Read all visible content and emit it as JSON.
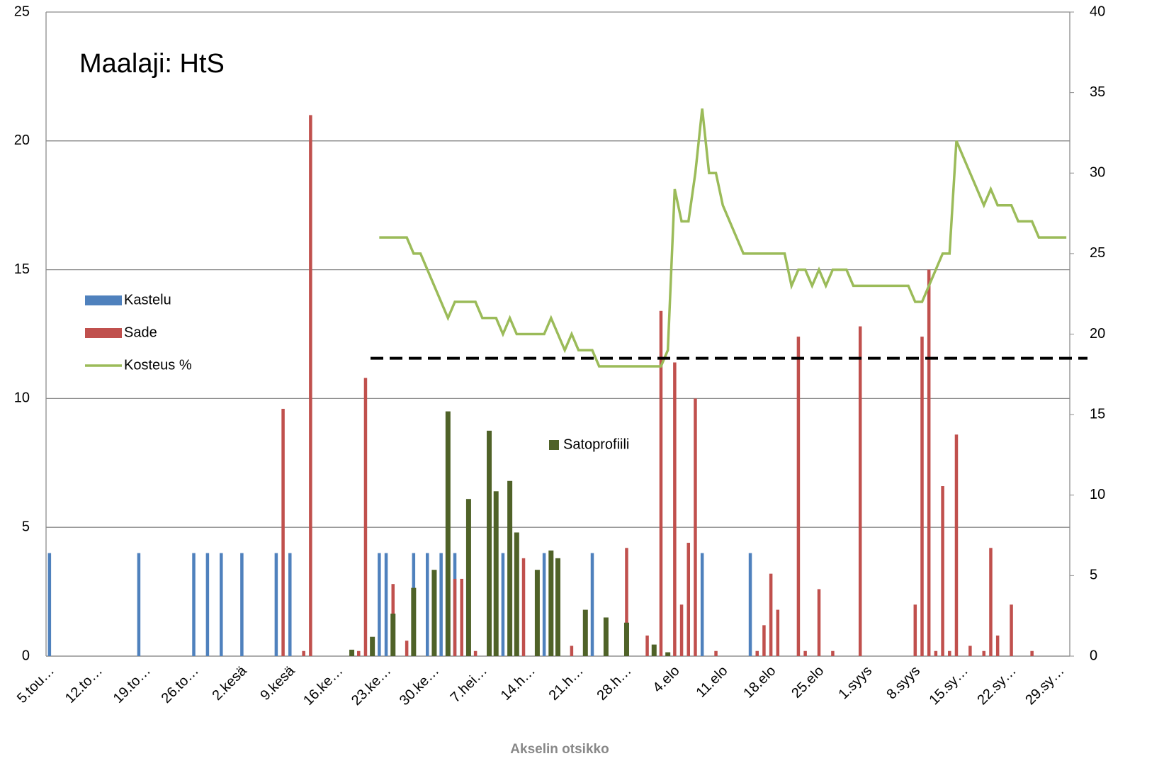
{
  "chart_data": {
    "type": "bar_line",
    "title": "Maalaji: HtS",
    "x_label": "Akselin otsikko",
    "categories": [
      "5.tou…",
      null,
      null,
      null,
      null,
      null,
      null,
      "12.to…",
      null,
      null,
      null,
      null,
      null,
      null,
      "19.to…",
      null,
      null,
      null,
      null,
      null,
      null,
      "26.to…",
      null,
      null,
      null,
      null,
      null,
      null,
      "2.kesä",
      null,
      null,
      null,
      null,
      null,
      null,
      "9.kesä",
      null,
      null,
      null,
      null,
      null,
      null,
      "16.ke…",
      null,
      null,
      null,
      null,
      null,
      null,
      "23.ke…",
      null,
      null,
      null,
      null,
      null,
      null,
      "30.ke…",
      null,
      null,
      null,
      null,
      null,
      null,
      "7.hei…",
      null,
      null,
      null,
      null,
      null,
      null,
      "14.h…",
      null,
      null,
      null,
      null,
      null,
      null,
      "21.h…",
      null,
      null,
      null,
      null,
      null,
      null,
      "28.h…",
      null,
      null,
      null,
      null,
      null,
      null,
      "4.elo",
      null,
      null,
      null,
      null,
      null,
      null,
      "11.elo",
      null,
      null,
      null,
      null,
      null,
      null,
      "18.elo",
      null,
      null,
      null,
      null,
      null,
      null,
      "25.elo",
      null,
      null,
      null,
      null,
      null,
      null,
      "1.syys",
      null,
      null,
      null,
      null,
      null,
      null,
      "8.syys",
      null,
      null,
      null,
      null,
      null,
      null,
      "15.sy…",
      null,
      null,
      null,
      null,
      null,
      null,
      "22.sy…",
      null,
      null,
      null,
      null,
      null,
      null,
      "29.sy…",
      null
    ],
    "series": [
      {
        "name": "Kastelu",
        "kind": "bar",
        "color": "#4f81bd",
        "values": [
          4,
          null,
          null,
          null,
          null,
          null,
          null,
          null,
          null,
          null,
          null,
          null,
          null,
          4,
          null,
          null,
          null,
          null,
          null,
          null,
          null,
          4,
          null,
          4,
          null,
          4,
          null,
          null,
          4,
          null,
          null,
          null,
          null,
          4,
          null,
          4,
          null,
          null,
          null,
          null,
          null,
          null,
          null,
          null,
          null,
          null,
          null,
          null,
          4,
          4,
          null,
          null,
          null,
          4,
          null,
          4,
          null,
          4,
          null,
          4,
          null,
          null,
          null,
          null,
          null,
          null,
          4,
          null,
          null,
          null,
          null,
          null,
          4,
          null,
          null,
          null,
          null,
          null,
          null,
          4,
          null,
          null,
          null,
          null,
          null,
          null,
          null,
          null,
          null,
          null,
          null,
          null,
          null,
          null,
          null,
          4,
          null,
          null,
          null,
          null,
          null,
          null,
          4,
          null,
          null,
          null,
          null,
          null,
          null,
          null,
          null,
          null,
          null,
          null,
          null,
          null,
          null,
          null,
          null,
          null,
          null,
          null,
          null,
          null,
          null,
          null,
          null,
          null,
          null,
          null,
          null,
          null,
          null,
          null,
          null,
          null,
          null,
          null,
          null,
          null,
          null,
          null,
          null,
          null,
          null,
          null,
          null,
          null,
          null
        ]
      },
      {
        "name": "Sade",
        "kind": "bar",
        "color": "#c0504d",
        "values": [
          null,
          null,
          null,
          null,
          null,
          null,
          null,
          null,
          null,
          null,
          null,
          null,
          null,
          null,
          null,
          null,
          null,
          null,
          null,
          null,
          null,
          null,
          null,
          null,
          null,
          null,
          null,
          null,
          null,
          null,
          null,
          null,
          null,
          null,
          9.6,
          null,
          null,
          0.2,
          21,
          null,
          null,
          null,
          null,
          null,
          null,
          0.2,
          10.8,
          null,
          null,
          null,
          2.8,
          null,
          0.6,
          null,
          null,
          null,
          null,
          null,
          null,
          3,
          3,
          null,
          0.2,
          null,
          null,
          null,
          null,
          null,
          null,
          3.8,
          null,
          null,
          null,
          null,
          null,
          null,
          0.4,
          null,
          null,
          null,
          null,
          null,
          null,
          null,
          4.2,
          null,
          null,
          0.8,
          null,
          13.4,
          null,
          11.4,
          2,
          4.4,
          10,
          null,
          null,
          0.2,
          null,
          null,
          null,
          null,
          null,
          0.2,
          1.2,
          3.2,
          1.8,
          null,
          null,
          12.4,
          0.2,
          null,
          2.6,
          null,
          0.2,
          null,
          null,
          null,
          12.8,
          null,
          null,
          null,
          null,
          null,
          null,
          null,
          2,
          12.4,
          15,
          0.2,
          6.6,
          0.2,
          8.6,
          null,
          0.4,
          null,
          0.2,
          4.2,
          0.8,
          null,
          2,
          null,
          null,
          0.2,
          null,
          null,
          null,
          null,
          null
        ]
      },
      {
        "name": "Kosteus %",
        "kind": "line",
        "axis": "y2",
        "color": "#9bbb59",
        "values": [
          null,
          null,
          null,
          null,
          null,
          null,
          null,
          null,
          null,
          null,
          null,
          null,
          null,
          null,
          null,
          null,
          null,
          null,
          null,
          null,
          null,
          null,
          null,
          null,
          null,
          null,
          null,
          null,
          null,
          null,
          null,
          null,
          null,
          null,
          null,
          null,
          null,
          null,
          null,
          null,
          null,
          null,
          null,
          null,
          null,
          null,
          null,
          null,
          26,
          26,
          26,
          26,
          26,
          25,
          25,
          24,
          23,
          22,
          21,
          22,
          22,
          22,
          22,
          21,
          21,
          21,
          20,
          21,
          20,
          20,
          20,
          20,
          20,
          21,
          20,
          19,
          20,
          19,
          19,
          19,
          18,
          18,
          18,
          18,
          18,
          18,
          18,
          18,
          18,
          18,
          19,
          29,
          27,
          27,
          30,
          34,
          30,
          30,
          28,
          27,
          26,
          25,
          25,
          25,
          25,
          25,
          25,
          25,
          23,
          24,
          24,
          23,
          24,
          23,
          24,
          24,
          24,
          23,
          23,
          23,
          23,
          23,
          23,
          23,
          23,
          23,
          22,
          22,
          23,
          24,
          25,
          25,
          32,
          31,
          30,
          29,
          28,
          29,
          28,
          28,
          28,
          27,
          27,
          27,
          26,
          26,
          26,
          26,
          26
        ]
      },
      {
        "name": "Satoprofiili",
        "kind": "bar",
        "color": "#4f6228",
        "values": [
          null,
          null,
          null,
          null,
          null,
          null,
          null,
          null,
          null,
          null,
          null,
          null,
          null,
          null,
          null,
          null,
          null,
          null,
          null,
          null,
          null,
          null,
          null,
          null,
          null,
          null,
          null,
          null,
          null,
          null,
          null,
          null,
          null,
          null,
          null,
          null,
          null,
          null,
          null,
          null,
          null,
          null,
          null,
          null,
          0.25,
          null,
          null,
          0.75,
          null,
          null,
          1.65,
          null,
          null,
          2.65,
          null,
          null,
          3.35,
          null,
          9.5,
          null,
          null,
          6.1,
          null,
          null,
          8.75,
          6.4,
          null,
          6.8,
          4.8,
          null,
          null,
          3.35,
          null,
          4.1,
          3.8,
          null,
          null,
          null,
          1.8,
          null,
          null,
          1.5,
          null,
          null,
          1.3,
          null,
          null,
          null,
          0.45,
          null,
          0.15,
          null,
          null,
          null,
          null,
          null,
          null,
          null,
          null,
          null,
          null,
          null,
          null,
          null,
          null,
          null,
          null,
          null,
          null,
          null,
          null,
          null,
          null,
          null,
          null,
          null,
          null,
          null,
          null,
          null,
          null,
          null,
          null,
          null,
          null,
          null,
          null,
          null,
          null,
          null,
          null,
          null,
          null,
          null,
          null,
          null,
          null,
          null,
          null,
          null,
          null,
          null,
          null,
          null,
          null,
          null,
          null,
          null,
          null
        ]
      }
    ],
    "reference_line": {
      "value": 18.5,
      "axis": "y2",
      "color": "#000000"
    },
    "ylim": [
      0,
      25
    ],
    "yticks": [
      0,
      5,
      10,
      15,
      20,
      25
    ],
    "y2lim": [
      0,
      40
    ],
    "y2ticks": [
      0,
      5,
      10,
      15,
      20,
      25,
      30,
      35,
      40
    ],
    "grid": true
  }
}
